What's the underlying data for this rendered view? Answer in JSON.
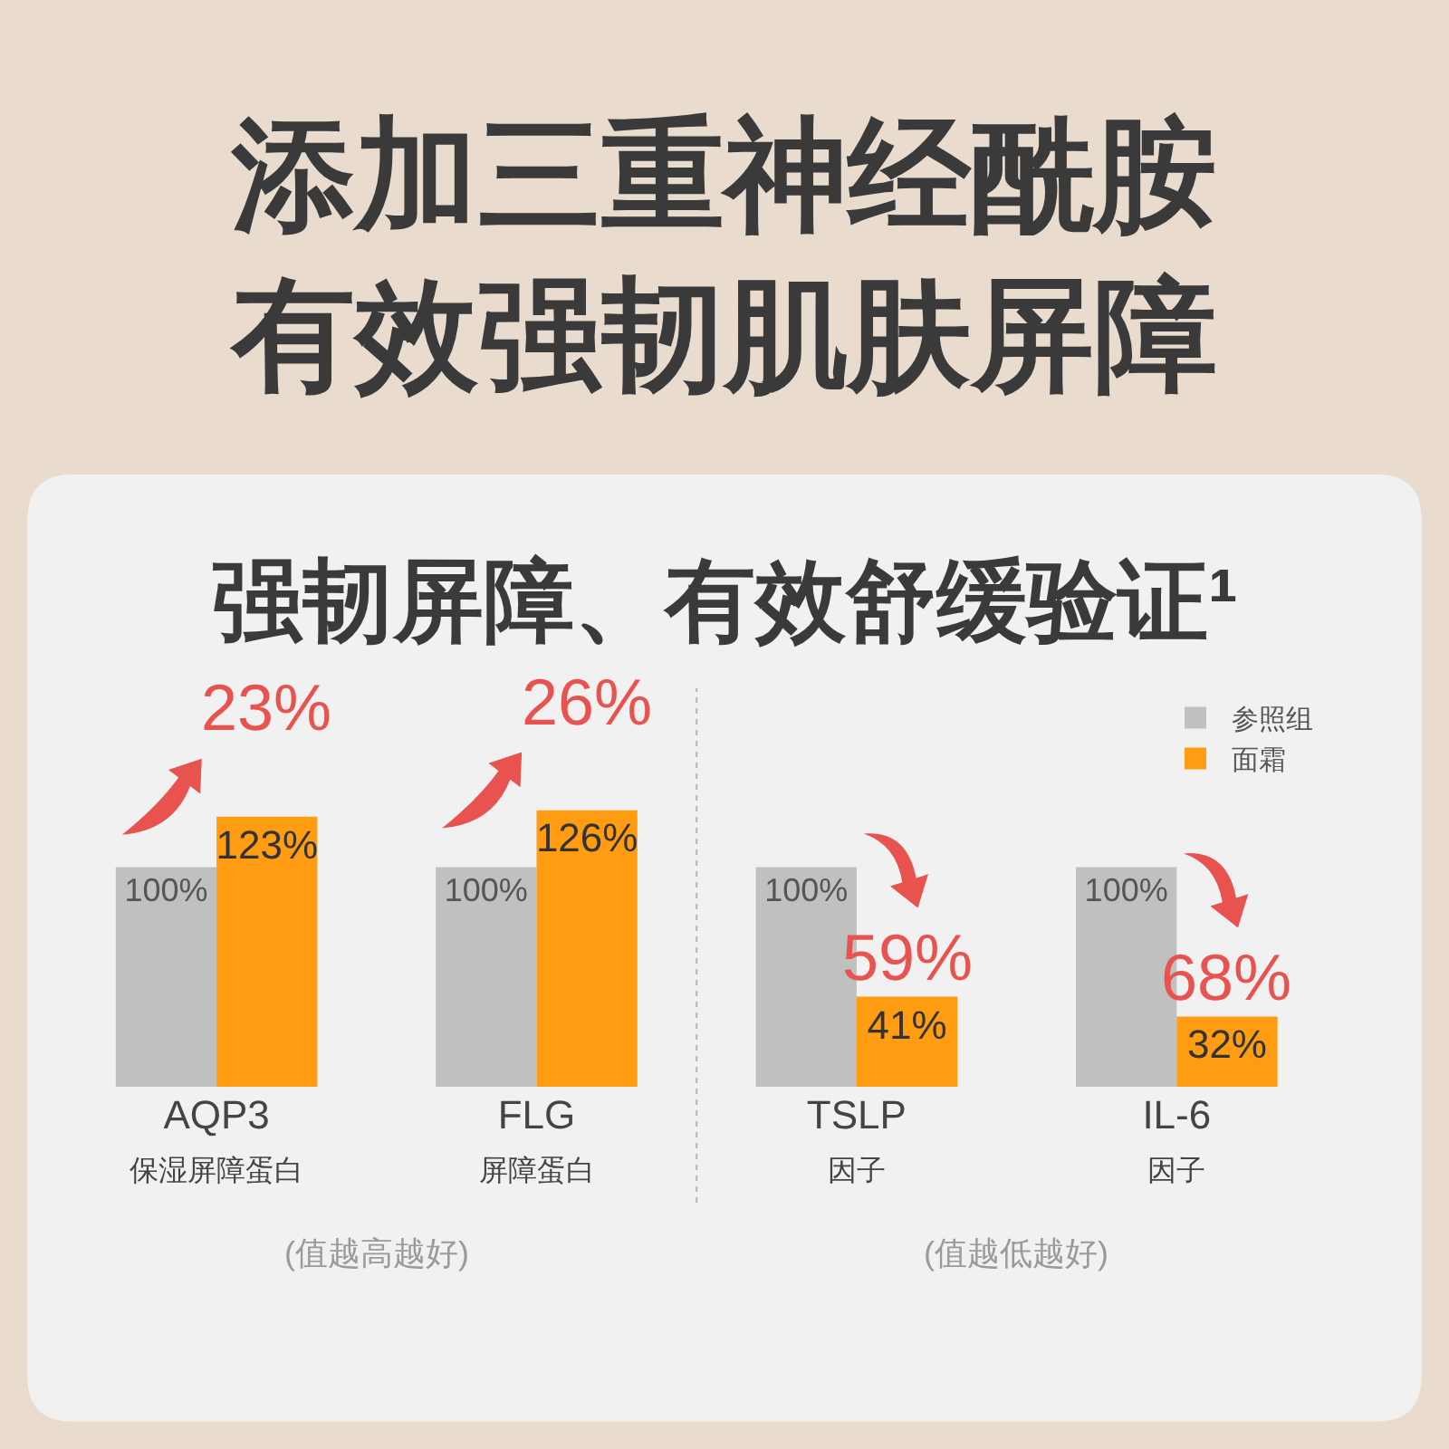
{
  "chart_data": {
    "type": "bar",
    "title": "添加三重神经酰胺有效强韧肌肤屏障",
    "subtitle": "强韧屏障、有效舒缓验证¹",
    "categories": [
      "AQP3\n保湿屏障蛋白",
      "FLG\n屏障蛋白",
      "TSLP\n因子",
      "IL-6\n因子"
    ],
    "series": [
      {
        "name": "参照组",
        "color": "#c0c0c0",
        "values": [
          100,
          100,
          100,
          100
        ],
        "value_labels": [
          "100%",
          "100%",
          "100%",
          "100%"
        ]
      },
      {
        "name": "面霜",
        "color": "#ff9c12",
        "values": [
          123,
          126,
          41,
          32
        ],
        "value_labels": [
          "123%",
          "126%",
          "41%",
          "32%"
        ]
      }
    ],
    "annotations": [
      {
        "text": "23%",
        "x": "AQP3\n保湿屏障蛋白",
        "y": 123
      },
      {
        "text": "26%",
        "x": "FLG\n屏障蛋白",
        "y": 126
      },
      {
        "text": "59%",
        "x": "TSLP\n因子",
        "y": 41
      },
      {
        "text": "68%",
        "x": "IL-6\n因子",
        "y": 32
      },
      "(值越高越好)",
      "(值越低越好)"
    ],
    "legend": "top right"
  }
}
